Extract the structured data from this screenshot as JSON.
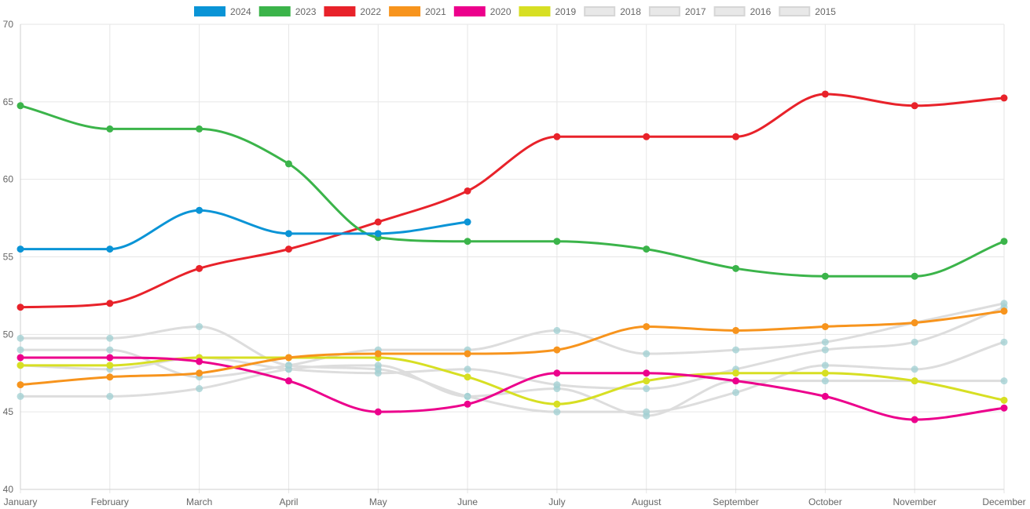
{
  "chart_data": {
    "type": "line",
    "title": "",
    "xlabel": "",
    "ylabel": "",
    "categories": [
      "January",
      "February",
      "March",
      "April",
      "May",
      "June",
      "July",
      "August",
      "September",
      "October",
      "November",
      "December"
    ],
    "ylim": [
      40,
      70
    ],
    "yticks": [
      40,
      45,
      50,
      55,
      60,
      65,
      70
    ],
    "grid": true,
    "legend_position": "top",
    "series": [
      {
        "name": "2024",
        "color": "#0a94d6",
        "muted": false,
        "values": [
          55.5,
          55.5,
          58.0,
          56.5,
          56.5,
          57.25,
          null,
          null,
          null,
          null,
          null,
          null
        ]
      },
      {
        "name": "2023",
        "color": "#3bb44a",
        "muted": false,
        "values": [
          64.75,
          63.25,
          63.25,
          61.0,
          56.25,
          56.0,
          56.0,
          55.5,
          54.25,
          53.75,
          53.75,
          56.0
        ]
      },
      {
        "name": "2022",
        "color": "#e8222a",
        "muted": false,
        "values": [
          51.75,
          52.0,
          54.25,
          55.5,
          57.25,
          59.25,
          62.75,
          62.75,
          62.75,
          65.5,
          64.75,
          65.25
        ]
      },
      {
        "name": "2021",
        "color": "#f7941d",
        "muted": false,
        "values": [
          46.75,
          47.25,
          47.5,
          48.5,
          48.75,
          48.75,
          49.0,
          50.5,
          50.25,
          50.5,
          50.75,
          51.5
        ]
      },
      {
        "name": "2020",
        "color": "#ec008c",
        "muted": false,
        "values": [
          48.5,
          48.5,
          48.25,
          47.0,
          45.0,
          45.5,
          47.5,
          47.5,
          47.0,
          46.0,
          44.5,
          45.25
        ]
      },
      {
        "name": "2019",
        "color": "#d7df23",
        "muted": false,
        "values": [
          48.0,
          48.0,
          48.5,
          48.5,
          48.5,
          47.25,
          45.5,
          47.0,
          47.5,
          47.5,
          47.0,
          45.75
        ]
      },
      {
        "name": "2018",
        "color": "#dddddd",
        "muted": true,
        "values": [
          49.75,
          49.75,
          50.5,
          48.0,
          47.75,
          46.0,
          45.0,
          45.0,
          46.25,
          48.0,
          47.75,
          49.5
        ]
      },
      {
        "name": "2017",
        "color": "#dddddd",
        "muted": true,
        "values": [
          49.0,
          49.0,
          47.25,
          48.0,
          49.0,
          49.0,
          50.25,
          48.75,
          49.0,
          49.5,
          50.75,
          52.0
        ]
      },
      {
        "name": "2016",
        "color": "#dddddd",
        "muted": true,
        "values": [
          48.0,
          47.75,
          48.5,
          47.75,
          47.5,
          47.75,
          46.75,
          46.5,
          47.75,
          49.0,
          49.5,
          51.75
        ]
      },
      {
        "name": "2015",
        "color": "#dddddd",
        "muted": true,
        "values": [
          46.0,
          46.0,
          46.5,
          47.75,
          48.0,
          46.0,
          46.5,
          44.75,
          47.0,
          47.0,
          47.0,
          47.0
        ]
      }
    ],
    "muted_point_color": "#9fcfd1"
  }
}
